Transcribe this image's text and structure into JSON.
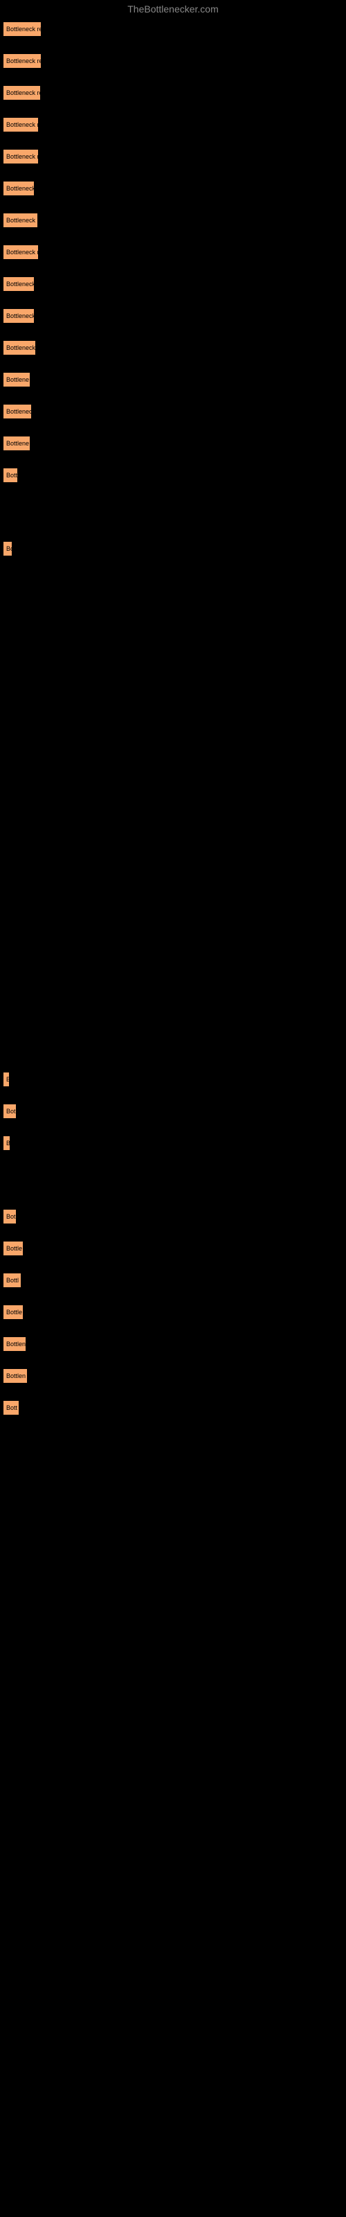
{
  "watermark": "TheBottlenecker.com",
  "rows": [
    {
      "label": "Bottleneck re",
      "width": 56
    },
    {
      "label": "Bottleneck re",
      "width": 56
    },
    {
      "label": "Bottleneck re",
      "width": 55
    },
    {
      "label": "Bottleneck r",
      "width": 52
    },
    {
      "label": "Bottleneck r",
      "width": 52
    },
    {
      "label": "Bottleneck",
      "width": 46
    },
    {
      "label": "Bottleneck r",
      "width": 51
    },
    {
      "label": "Bottleneck r",
      "width": 52
    },
    {
      "label": "Bottleneck",
      "width": 46
    },
    {
      "label": "Bottleneck",
      "width": 46
    },
    {
      "label": "Bottleneck",
      "width": 48
    },
    {
      "label": "Bottlene",
      "width": 40
    },
    {
      "label": "Bottlenec",
      "width": 42
    },
    {
      "label": "Bottlene",
      "width": 40
    },
    {
      "label": "Bott",
      "width": 22
    }
  ],
  "gap1_height": 60,
  "row_bo": {
    "label": "Bo",
    "width": 14
  },
  "gap2_height": 720,
  "tiny_row": {
    "label": "B",
    "width": 6
  },
  "rows_after": [
    {
      "label": "Bot",
      "width": 20
    },
    {
      "label": "B",
      "width": 11
    }
  ],
  "gap3_height": 60,
  "rows_final": [
    {
      "label": "Bot",
      "width": 20
    },
    {
      "label": "Bottle",
      "width": 30
    },
    {
      "label": "Bottl",
      "width": 27
    },
    {
      "label": "Bottle",
      "width": 30
    },
    {
      "label": "Bottlen",
      "width": 34
    },
    {
      "label": "Bottlen",
      "width": 36
    },
    {
      "label": "Bott",
      "width": 24
    }
  ]
}
